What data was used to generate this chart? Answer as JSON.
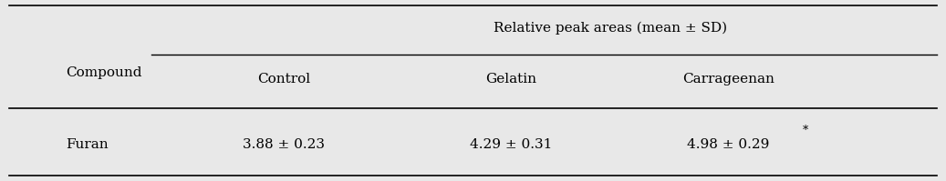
{
  "bg_color": "#e8e8e8",
  "title_text": "Relative peak areas (mean ± SD)",
  "col_header_left": "Compound",
  "col_headers": [
    "Control",
    "Gelatin",
    "Carrageenan"
  ],
  "row_label": "Furan",
  "row_values": [
    "3.88 ± 0.23",
    "4.29 ± 0.31",
    "4.98 ± 0.29"
  ],
  "asterisk_col": 2,
  "font_size": 11,
  "font_family": "serif"
}
